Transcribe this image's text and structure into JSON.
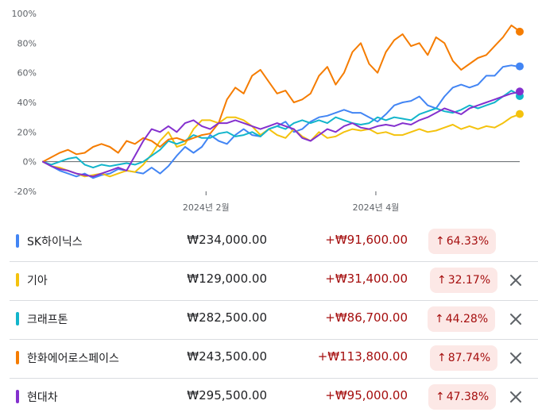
{
  "chart_data": {
    "type": "line",
    "y_ticks": [
      "100%",
      "80%",
      "60%",
      "40%",
      "20%",
      "0%",
      "-20%"
    ],
    "y_values": [
      100,
      80,
      60,
      40,
      20,
      0,
      -20
    ],
    "ylim": [
      -20,
      100
    ],
    "x_ticks": [
      "2024년 2월",
      "2024년 4월"
    ],
    "grid": false,
    "series": [
      {
        "name": "SK하이닉스",
        "color": "#4285f4",
        "end_value": 64.33,
        "values": [
          0,
          -3,
          -6,
          -8,
          -10,
          -8,
          -11,
          -9,
          -8,
          -5,
          -6,
          -7,
          -8,
          -4,
          -8,
          -3,
          4,
          10,
          6,
          10,
          18,
          14,
          12,
          18,
          22,
          18,
          17,
          22,
          24,
          27,
          20,
          22,
          27,
          30,
          31,
          33,
          35,
          33,
          33,
          30,
          27,
          32,
          38,
          40,
          41,
          44,
          38,
          36,
          44,
          50,
          52,
          50,
          52,
          58,
          58,
          64,
          65,
          64
        ]
      },
      {
        "name": "기아",
        "color": "#f4c20d",
        "end_value": 32.17,
        "values": [
          0,
          -3,
          -4,
          -6,
          -8,
          -10,
          -9,
          -8,
          -10,
          -8,
          -6,
          -7,
          -2,
          5,
          14,
          20,
          10,
          12,
          22,
          28,
          28,
          26,
          30,
          30,
          28,
          24,
          18,
          22,
          18,
          16,
          22,
          17,
          14,
          20,
          16,
          17,
          20,
          22,
          21,
          22,
          19,
          20,
          18,
          18,
          20,
          22,
          20,
          21,
          23,
          25,
          22,
          24,
          22,
          24,
          23,
          26,
          30,
          32
        ]
      },
      {
        "name": "크래프톤",
        "color": "#12b5cb",
        "end_value": 44.28,
        "values": [
          0,
          -2,
          0,
          2,
          3,
          -2,
          -4,
          -2,
          -3,
          -2,
          -1,
          -2,
          0,
          4,
          8,
          14,
          12,
          14,
          18,
          16,
          16,
          19,
          20,
          17,
          18,
          20,
          17,
          22,
          24,
          22,
          26,
          28,
          26,
          28,
          26,
          30,
          28,
          26,
          25,
          26,
          30,
          28,
          30,
          29,
          28,
          32,
          34,
          36,
          34,
          33,
          35,
          38,
          36,
          38,
          40,
          44,
          48,
          45
        ]
      },
      {
        "name": "한화에어로스페이스",
        "color": "#f57c00",
        "end_value": 87.74,
        "values": [
          0,
          3,
          6,
          8,
          5,
          6,
          10,
          12,
          10,
          6,
          14,
          12,
          16,
          14,
          10,
          15,
          16,
          14,
          16,
          18,
          19,
          26,
          42,
          50,
          46,
          58,
          62,
          54,
          46,
          48,
          40,
          42,
          46,
          58,
          64,
          52,
          60,
          74,
          80,
          66,
          60,
          74,
          82,
          86,
          78,
          80,
          72,
          84,
          80,
          68,
          62,
          66,
          70,
          72,
          78,
          84,
          92,
          88
        ]
      },
      {
        "name": "현대차",
        "color": "#8430ce",
        "end_value": 47.38,
        "values": [
          0,
          -3,
          -5,
          -6,
          -8,
          -9,
          -10,
          -8,
          -6,
          -4,
          -6,
          4,
          14,
          22,
          20,
          24,
          20,
          26,
          28,
          24,
          22,
          26,
          26,
          28,
          26,
          24,
          22,
          24,
          26,
          24,
          22,
          16,
          14,
          18,
          22,
          20,
          24,
          26,
          23,
          22,
          24,
          25,
          24,
          26,
          25,
          28,
          30,
          33,
          36,
          34,
          32,
          36,
          38,
          40,
          42,
          44,
          46,
          47
        ]
      }
    ]
  },
  "rows": [
    {
      "name": "SK하이닉스",
      "price": "₩234,000.00",
      "change": "+₩91,600.00",
      "arrow": "↑",
      "pct": "64.33%",
      "color": "#4285f4",
      "removable": false
    },
    {
      "name": "기아",
      "price": "₩129,000.00",
      "change": "+₩31,400.00",
      "arrow": "↑",
      "pct": "32.17%",
      "color": "#f4c20d",
      "removable": true
    },
    {
      "name": "크래프톤",
      "price": "₩282,500.00",
      "change": "+₩86,700.00",
      "arrow": "↑",
      "pct": "44.28%",
      "color": "#12b5cb",
      "removable": true
    },
    {
      "name": "한화에어로스페이스",
      "price": "₩243,500.00",
      "change": "+₩113,800.00",
      "arrow": "↑",
      "pct": "87.74%",
      "color": "#f57c00",
      "removable": true
    },
    {
      "name": "현대차",
      "price": "₩295,500.00",
      "change": "+₩95,000.00",
      "arrow": "↑",
      "pct": "47.38%",
      "color": "#8430ce",
      "removable": true
    }
  ],
  "icons": {
    "remove": "close-icon",
    "trend": "arrow-up-icon"
  },
  "colors": {
    "positive_text": "#a50e0e",
    "positive_bg": "#fce8e6",
    "zero_line": "#5f6368"
  }
}
